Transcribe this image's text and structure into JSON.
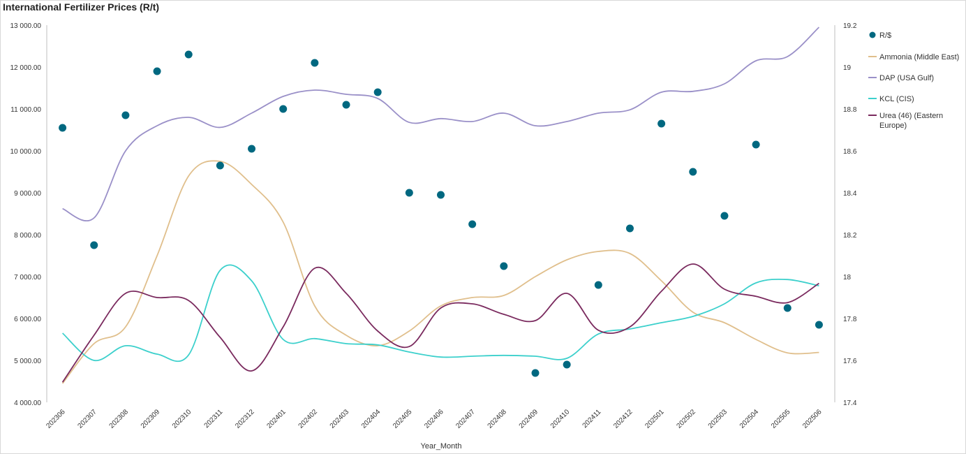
{
  "chart_data": {
    "type": "line",
    "title": "International Fertilizer Prices (R/t)",
    "xlabel": "Year_Month",
    "categories": [
      "202306",
      "202307",
      "202308",
      "202309",
      "202310",
      "202311",
      "202312",
      "202401",
      "202402",
      "202403",
      "202404",
      "202405",
      "202406",
      "202407",
      "202408",
      "202409",
      "202410",
      "202411",
      "202412",
      "202501",
      "202502",
      "202503",
      "202504",
      "202505",
      "202506"
    ],
    "y_left": {
      "ylim": [
        4000,
        13000
      ],
      "ticks": [
        "4 000.00",
        "5 000.00",
        "6 000.00",
        "7 000.00",
        "8 000.00",
        "9 000.00",
        "10 000.00",
        "11 000.00",
        "12 000.00",
        "13 000.00"
      ]
    },
    "y_right": {
      "ylim": [
        17.4,
        19.2
      ],
      "ticks": [
        "17.4",
        "17.6",
        "17.8",
        "18",
        "18.2",
        "18.4",
        "18.6",
        "18.8",
        "19",
        "19.2"
      ]
    },
    "legend_position": "right",
    "series": [
      {
        "name": "R/$",
        "kind": "scatter",
        "axis": "right",
        "color": "#006880",
        "values": [
          18.71,
          18.15,
          18.77,
          18.98,
          19.06,
          18.53,
          18.61,
          18.8,
          19.02,
          18.82,
          18.88,
          18.4,
          18.39,
          18.25,
          18.05,
          17.54,
          17.58,
          17.96,
          18.23,
          18.73,
          18.5,
          18.29,
          18.63,
          17.85,
          17.77
        ]
      },
      {
        "name": "Ammonia (Middle East)",
        "kind": "line",
        "axis": "left",
        "color": "#e0bf8c",
        "values": [
          4450,
          5400,
          5800,
          7500,
          9400,
          9750,
          9200,
          8300,
          6300,
          5600,
          5350,
          5700,
          6300,
          6500,
          6550,
          7000,
          7400,
          7600,
          7550,
          6900,
          6150,
          5900,
          5500,
          5180,
          5190
        ]
      },
      {
        "name": "DAP (USA Gulf)",
        "kind": "line",
        "axis": "left",
        "color": "#9a90c8",
        "values": [
          8620,
          8400,
          10000,
          10600,
          10800,
          10560,
          10900,
          11300,
          11450,
          11350,
          11250,
          10680,
          10770,
          10700,
          10900,
          10600,
          10700,
          10900,
          10980,
          11400,
          11420,
          11600,
          12150,
          12250,
          12950
        ]
      },
      {
        "name": "KCL (CIS)",
        "kind": "line",
        "axis": "left",
        "color": "#3cd0cc",
        "values": [
          5650,
          5000,
          5350,
          5150,
          5130,
          7150,
          6900,
          5500,
          5520,
          5400,
          5370,
          5200,
          5080,
          5100,
          5120,
          5100,
          5050,
          5630,
          5750,
          5900,
          6050,
          6350,
          6850,
          6930,
          6780
        ]
      },
      {
        "name": "Urea (46) (Eastern Europe)",
        "kind": "line",
        "axis": "left",
        "color": "#7a2a5e",
        "values": [
          4480,
          5600,
          6600,
          6500,
          6430,
          5550,
          4750,
          5800,
          7200,
          6600,
          5700,
          5330,
          6250,
          6350,
          6100,
          5950,
          6600,
          5720,
          5800,
          6650,
          7300,
          6700,
          6530,
          6380,
          6840
        ]
      }
    ]
  }
}
